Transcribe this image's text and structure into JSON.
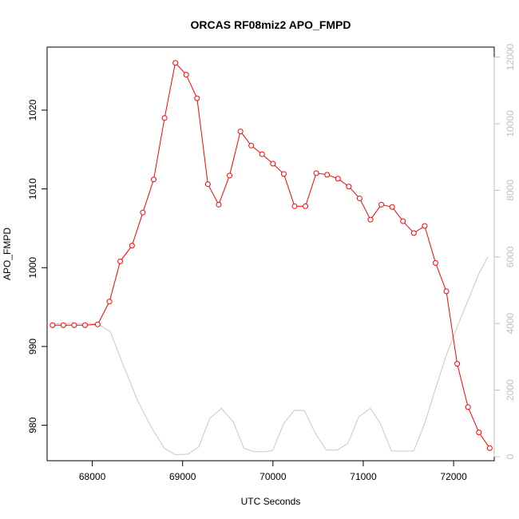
{
  "chart_data": {
    "type": "line",
    "title": "ORCAS RF08miz2 APO_FMPD",
    "xlabel": "UTC Seconds",
    "ylabel": "APO_FMPD",
    "xlim": [
      67500,
      72450
    ],
    "ylim": [
      975.5,
      1028
    ],
    "y2lim": [
      -120,
      12300
    ],
    "x_ticks": [
      68000,
      69000,
      70000,
      71000,
      72000
    ],
    "y_ticks": [
      980,
      990,
      1000,
      1010,
      1020
    ],
    "y2_ticks": [
      0,
      2000,
      4000,
      6000,
      8000,
      10000,
      12000
    ],
    "series": [
      {
        "axis": "left",
        "color": "#ff0000",
        "marker": "open-circle",
        "x": [
          67560,
          67680,
          67800,
          67920,
          68060,
          68190,
          68310,
          68440,
          68560,
          68680,
          68800,
          68920,
          69040,
          69160,
          69280,
          69400,
          69520,
          69640,
          69760,
          69880,
          70000,
          70120,
          70240,
          70360,
          70480,
          70600,
          70720,
          70840,
          70960,
          71080,
          71200,
          71320,
          71440,
          71560,
          71680,
          71800,
          71920,
          72040,
          72160,
          72280,
          72400
        ],
        "values": [
          992.7,
          992.7,
          992.7,
          992.7,
          992.8,
          995.7,
          1000.8,
          1002.8,
          1007.0,
          1011.2,
          1019.0,
          1026.0,
          1024.5,
          1021.5,
          1010.6,
          1008.0,
          1011.7,
          1017.3,
          1015.5,
          1014.4,
          1013.2,
          1011.9,
          1007.8,
          1007.8,
          1012.0,
          1011.8,
          1011.3,
          1010.3,
          1008.8,
          1006.1,
          1008.0,
          1007.7,
          1005.9,
          1004.4,
          1005.3,
          1000.6,
          997.0,
          987.8,
          982.3,
          979.1,
          977.1
        ]
      },
      {
        "axis": "right",
        "color": "#c8c8c8",
        "marker": "none",
        "x": [
          67560,
          67680,
          67800,
          67920,
          68060,
          68200,
          68350,
          68500,
          68650,
          68800,
          68920,
          69060,
          69180,
          69300,
          69430,
          69560,
          69680,
          69800,
          69920,
          70000,
          70120,
          70240,
          70350,
          70470,
          70590,
          70710,
          70830,
          70950,
          71080,
          71190,
          71310,
          71440,
          71560,
          71680,
          71800,
          71920,
          72040,
          72160,
          72280,
          72380
        ],
        "values": [
          4000,
          4000,
          4000,
          4000,
          4000,
          3750,
          2700,
          1700,
          900,
          250,
          60,
          80,
          300,
          1150,
          1450,
          1050,
          250,
          150,
          150,
          200,
          1000,
          1400,
          1380,
          700,
          200,
          200,
          400,
          1200,
          1450,
          1000,
          180,
          160,
          180,
          1000,
          2050,
          3050,
          3900,
          4700,
          5500,
          6000
        ]
      }
    ]
  }
}
